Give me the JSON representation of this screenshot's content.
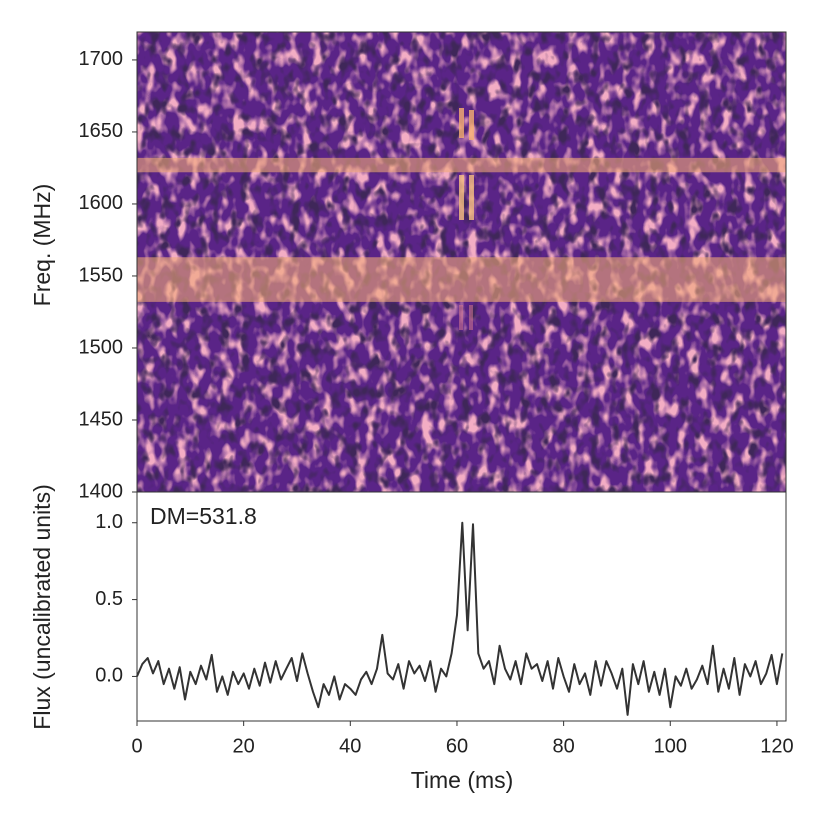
{
  "chart_data": [
    {
      "type": "heatmap",
      "ylabel": "Freq. (MHz)",
      "ylim": [
        1400,
        1719.4
      ],
      "yticks": [
        1400,
        1450,
        1500,
        1550,
        1600,
        1650,
        1700
      ],
      "masked_bands": [
        [
          1532,
          1563
        ],
        [
          1622,
          1632
        ]
      ],
      "mask_color": "#f0a878"
    },
    {
      "type": "line",
      "xlabel": "Time (ms)",
      "ylabel": "Flux (uncalibrated units)",
      "annotation": "DM=531.8",
      "xlim": [
        0,
        121.7
      ],
      "xticks": [
        0,
        20,
        40,
        60,
        80,
        100,
        120
      ],
      "ylim": [
        -0.29,
        1.2
      ],
      "yticks": [
        {
          "value": 0,
          "label": "0.0"
        },
        {
          "value": 0.5,
          "label": "0.5"
        },
        {
          "value": 1,
          "label": "1.0"
        }
      ],
      "x": [
        0,
        1,
        2,
        3,
        4,
        5,
        6,
        7,
        8,
        9,
        10,
        11,
        12,
        13,
        14,
        15,
        16,
        17,
        18,
        19,
        20,
        21,
        22,
        23,
        24,
        25,
        26,
        27,
        28,
        29,
        30,
        31,
        32,
        33,
        34,
        35,
        36,
        37,
        38,
        39,
        40,
        41,
        42,
        43,
        44,
        45,
        46,
        47,
        48,
        49,
        50,
        51,
        52,
        53,
        54,
        55,
        56,
        57,
        58,
        59,
        60,
        61,
        62,
        63,
        64,
        65,
        66,
        67,
        68,
        69,
        70,
        71,
        72,
        73,
        74,
        75,
        76,
        77,
        78,
        79,
        80,
        81,
        82,
        83,
        84,
        85,
        86,
        87,
        88,
        89,
        90,
        91,
        92,
        93,
        94,
        95,
        96,
        97,
        98,
        99,
        100,
        101,
        102,
        103,
        104,
        105,
        106,
        107,
        108,
        109,
        110,
        111,
        112,
        113,
        114,
        115,
        116,
        117,
        118,
        119,
        120,
        121
      ],
      "series": [
        {
          "color": "#333333",
          "values": [
            0.0,
            0.08,
            0.12,
            0.02,
            0.1,
            -0.05,
            0.05,
            -0.08,
            0.06,
            -0.15,
            0.03,
            -0.05,
            0.07,
            -0.02,
            0.14,
            -0.1,
            0.0,
            -0.12,
            0.03,
            -0.05,
            0.02,
            -0.08,
            0.05,
            -0.06,
            0.09,
            -0.04,
            0.1,
            -0.02,
            0.05,
            0.12,
            -0.03,
            0.15,
            0.02,
            -0.1,
            -0.2,
            -0.05,
            -0.12,
            0.0,
            -0.15,
            -0.05,
            -0.08,
            -0.12,
            -0.02,
            0.03,
            -0.05,
            0.05,
            0.27,
            0.02,
            -0.02,
            0.08,
            -0.08,
            0.1,
            0.02,
            0.07,
            -0.03,
            0.1,
            -0.1,
            0.05,
            0.0,
            0.15,
            0.4,
            1.0,
            0.3,
            0.99,
            0.15,
            0.05,
            0.1,
            -0.05,
            0.2,
            0.05,
            -0.02,
            0.1,
            -0.05,
            0.15,
            0.05,
            0.08,
            -0.03,
            0.1,
            -0.08,
            0.12,
            0.0,
            -0.1,
            0.08,
            -0.05,
            0.02,
            -0.12,
            0.1,
            -0.06,
            0.1,
            0.02,
            -0.08,
            0.05,
            -0.25,
            0.08,
            -0.05,
            0.1,
            -0.1,
            0.03,
            -0.12,
            0.05,
            -0.2,
            0.0,
            -0.06,
            0.05,
            -0.08,
            -0.02,
            0.07,
            -0.05,
            0.2,
            -0.1,
            0.05,
            -0.08,
            0.12,
            -0.12,
            0.08,
            0.0,
            0.1,
            -0.05,
            0.02,
            0.14,
            -0.05,
            0.15
          ]
        }
      ]
    }
  ]
}
